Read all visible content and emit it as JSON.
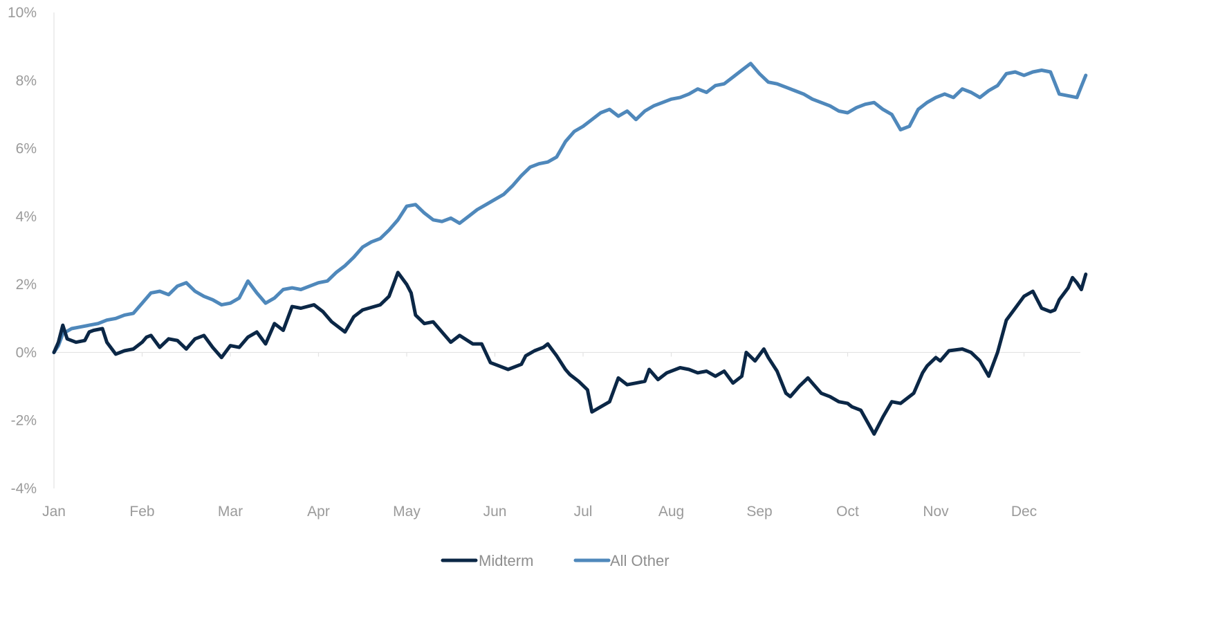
{
  "chart_data": {
    "type": "line",
    "title": "",
    "xlabel": "",
    "ylabel": "",
    "ylim": [
      -4,
      10
    ],
    "yticks": [
      "10%",
      "8%",
      "6%",
      "4%",
      "2%",
      "0%",
      "-2%",
      "-4%"
    ],
    "ytick_values": [
      10,
      8,
      6,
      4,
      2,
      0,
      -2,
      -4
    ],
    "xticks": [
      "Jan",
      "Feb",
      "Mar",
      "Apr",
      "May",
      "Jun",
      "Jul",
      "Aug",
      "Sep",
      "Oct",
      "Nov",
      "Dec"
    ],
    "x_unit": "month",
    "xlim": [
      0,
      11.7
    ],
    "grid": false,
    "legend_position": "bottom",
    "series": [
      {
        "name": "Midterm",
        "color": "#0b2746",
        "x": [
          0,
          0.05,
          0.1,
          0.15,
          0.25,
          0.35,
          0.4,
          0.45,
          0.55,
          0.6,
          0.7,
          0.8,
          0.9,
          1.0,
          1.05,
          1.1,
          1.2,
          1.3,
          1.4,
          1.5,
          1.6,
          1.7,
          1.8,
          1.9,
          2.0,
          2.1,
          2.2,
          2.3,
          2.4,
          2.5,
          2.6,
          2.7,
          2.8,
          2.95,
          3.05,
          3.15,
          3.3,
          3.4,
          3.5,
          3.7,
          3.8,
          3.9,
          4.0,
          4.05,
          4.1,
          4.2,
          4.3,
          4.5,
          4.6,
          4.75,
          4.85,
          4.95,
          5.05,
          5.15,
          5.3,
          5.35,
          5.45,
          5.55,
          5.6,
          5.7,
          5.8,
          5.85,
          5.95,
          6.05,
          6.1,
          6.2,
          6.3,
          6.4,
          6.5,
          6.6,
          6.7,
          6.75,
          6.85,
          6.95,
          7.1,
          7.2,
          7.3,
          7.4,
          7.5,
          7.6,
          7.7,
          7.8,
          7.85,
          7.95,
          8.05,
          8.1,
          8.2,
          8.3,
          8.35,
          8.45,
          8.55,
          8.6,
          8.7,
          8.8,
          8.9,
          9.0,
          9.05,
          9.15,
          9.3,
          9.4,
          9.5,
          9.6,
          9.75,
          9.85,
          9.9,
          10.0,
          10.05,
          10.15,
          10.3,
          10.4,
          10.5,
          10.6,
          10.7,
          10.8,
          10.9,
          11.0,
          11.1,
          11.2,
          11.3,
          11.35,
          11.4,
          11.5,
          11.55,
          11.6,
          11.65,
          11.7
        ],
        "y": [
          0,
          0.3,
          0.8,
          0.4,
          0.3,
          0.35,
          0.6,
          0.65,
          0.7,
          0.3,
          -0.05,
          0.05,
          0.1,
          0.3,
          0.45,
          0.5,
          0.15,
          0.4,
          0.35,
          0.1,
          0.4,
          0.5,
          0.15,
          -0.15,
          0.2,
          0.15,
          0.45,
          0.6,
          0.25,
          0.85,
          0.65,
          1.35,
          1.3,
          1.4,
          1.2,
          0.9,
          0.6,
          1.05,
          1.25,
          1.4,
          1.65,
          2.35,
          2.0,
          1.75,
          1.1,
          0.85,
          0.9,
          0.3,
          0.5,
          0.25,
          0.25,
          -0.3,
          -0.4,
          -0.5,
          -0.35,
          -0.1,
          0.05,
          0.15,
          0.25,
          -0.1,
          -0.5,
          -0.65,
          -0.85,
          -1.1,
          -1.75,
          -1.6,
          -1.45,
          -0.75,
          -0.95,
          -0.9,
          -0.85,
          -0.5,
          -0.8,
          -0.6,
          -0.45,
          -0.5,
          -0.6,
          -0.55,
          -0.7,
          -0.55,
          -0.9,
          -0.7,
          0.0,
          -0.25,
          0.1,
          -0.15,
          -0.55,
          -1.2,
          -1.3,
          -1.0,
          -0.75,
          -0.9,
          -1.2,
          -1.3,
          -1.45,
          -1.5,
          -1.6,
          -1.7,
          -2.4,
          -1.9,
          -1.45,
          -1.5,
          -1.2,
          -0.6,
          -0.4,
          -0.15,
          -0.25,
          0.05,
          0.1,
          0.0,
          -0.25,
          -0.7,
          0.0,
          0.95,
          1.3,
          1.65,
          1.8,
          1.3,
          1.2,
          1.25,
          1.55,
          1.9,
          2.2,
          2.05,
          1.85,
          2.3
        ],
        "notes": []
      },
      {
        "name": "All Other",
        "color": "#4f88bb",
        "x": [
          0,
          0.05,
          0.1,
          0.2,
          0.3,
          0.4,
          0.5,
          0.6,
          0.7,
          0.8,
          0.9,
          1.0,
          1.1,
          1.2,
          1.3,
          1.4,
          1.5,
          1.6,
          1.7,
          1.8,
          1.9,
          2.0,
          2.1,
          2.2,
          2.3,
          2.4,
          2.5,
          2.6,
          2.7,
          2.8,
          2.9,
          3.0,
          3.1,
          3.2,
          3.3,
          3.4,
          3.5,
          3.6,
          3.7,
          3.8,
          3.9,
          4.0,
          4.1,
          4.2,
          4.3,
          4.4,
          4.5,
          4.6,
          4.7,
          4.8,
          4.9,
          5.0,
          5.1,
          5.2,
          5.3,
          5.4,
          5.5,
          5.6,
          5.7,
          5.8,
          5.9,
          6.0,
          6.1,
          6.2,
          6.3,
          6.4,
          6.5,
          6.6,
          6.7,
          6.8,
          6.9,
          7.0,
          7.1,
          7.2,
          7.3,
          7.4,
          7.5,
          7.6,
          7.7,
          7.8,
          7.9,
          8.0,
          8.1,
          8.2,
          8.3,
          8.4,
          8.5,
          8.6,
          8.7,
          8.8,
          8.9,
          9.0,
          9.1,
          9.2,
          9.3,
          9.4,
          9.5,
          9.6,
          9.7,
          9.8,
          9.9,
          10.0,
          10.1,
          10.2,
          10.3,
          10.4,
          10.5,
          10.6,
          10.7,
          10.8,
          10.9,
          11.0,
          11.1,
          11.2,
          11.3,
          11.4,
          11.5,
          11.6,
          11.7
        ],
        "y": [
          0,
          0.2,
          0.55,
          0.7,
          0.75,
          0.8,
          0.85,
          0.95,
          1.0,
          1.1,
          1.15,
          1.45,
          1.75,
          1.8,
          1.7,
          1.95,
          2.05,
          1.8,
          1.65,
          1.55,
          1.4,
          1.45,
          1.6,
          2.1,
          1.75,
          1.45,
          1.6,
          1.85,
          1.9,
          1.85,
          1.95,
          2.05,
          2.1,
          2.35,
          2.55,
          2.8,
          3.1,
          3.25,
          3.35,
          3.6,
          3.9,
          4.3,
          4.35,
          4.1,
          3.9,
          3.85,
          3.95,
          3.8,
          4.0,
          4.2,
          4.35,
          4.5,
          4.65,
          4.9,
          5.2,
          5.45,
          5.55,
          5.6,
          5.75,
          6.2,
          6.5,
          6.65,
          6.85,
          7.05,
          7.15,
          6.95,
          7.1,
          6.85,
          7.1,
          7.25,
          7.35,
          7.45,
          7.5,
          7.6,
          7.75,
          7.65,
          7.85,
          7.9,
          8.1,
          8.3,
          8.5,
          8.2,
          7.95,
          7.9,
          7.8,
          7.7,
          7.6,
          7.45,
          7.35,
          7.25,
          7.1,
          7.05,
          7.2,
          7.3,
          7.35,
          7.15,
          7.0,
          6.55,
          6.65,
          7.15,
          7.35,
          7.5,
          7.6,
          7.5,
          7.75,
          7.65,
          7.5,
          7.7,
          7.85,
          8.2,
          8.25,
          8.15,
          8.25,
          8.3,
          8.25,
          7.6,
          7.55,
          7.5,
          8.15
        ],
        "notes": []
      }
    ]
  }
}
